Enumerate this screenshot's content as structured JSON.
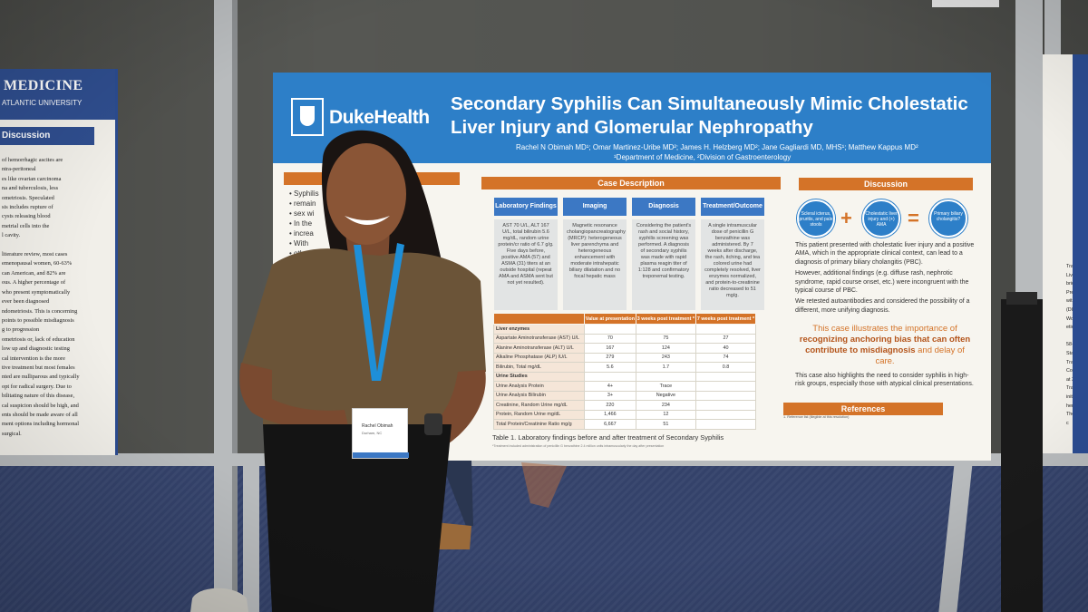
{
  "left_poster": {
    "header_word": "MEDICINE",
    "header_sub": "ATLANTIC UNIVERSITY",
    "section": "Discussion",
    "lines": [
      "of hemorrhagic ascites are",
      "ntra-peritoneal",
      "es like ovarian carcinoma",
      "na and tuberculosis, less",
      "ometriosis. Speculated",
      "sis includes rupture of",
      "cysts releasing blood",
      "metrial cells into the",
      "l cavity.",
      "",
      "literature review, most cases",
      "emenopausal women, 60-63%",
      "can American, and 82% are",
      "ous. A higher percentage of",
      "who present symptomatically",
      "ever been diagnosed",
      "ndometriosis. This is concerning",
      "points to possible misdiagnosis",
      "g to progression",
      "ometriosis or, lack of education",
      "low up and diagnostic testing",
      "cal intervention is the more",
      "tive treatment but most females",
      "nted are nulliparous and typically",
      "opt for radical surgery. Due to",
      "bilitating nature of this disease,",
      "cal suspicion should be high, and",
      "ents should be made aware of all",
      "ment options including hormonal",
      "surgical."
    ]
  },
  "right_poster": {
    "lines": [
      "Transamin",
      "Liver biops",
      "bridg",
      "Prese",
      "with zone 3",
      "(DILI)",
      "Workup",
      "etiolo",
      "",
      "58-y",
      "Statin was dis",
      "Transaminase",
      "Course notabl",
      "at 390,000 on",
      "Transaminase",
      "initiation of hemo",
      "The patient was c"
    ]
  },
  "poster": {
    "brand": "DukeHealth",
    "title": "Secondary Syphilis Can Simultaneously Mimic Cholestatic Liver Injury and Glomerular Nephropathy",
    "authors": "Rachel N Obimah MD¹; Omar Martinez-Uribe MD²; James H. Helzberg MD²; Jane Gagliardi MD, MHS¹; Matthew Kappus MD²",
    "department": "¹Department of Medicine, ²Division of Gastroenterology",
    "case_description": "Case Description",
    "discussion": "Discussion",
    "references": "References",
    "intro_lines": [
      "Syphilis",
      "remain",
      "sex wi",
      "In the",
      "increa",
      "With",
      "other"
    ],
    "columns": [
      {
        "head": "Laboratory Findings",
        "body": "AST 70 U/L, ALT 167 U/L, total bilirubin 5.6 mg/dL, random urine protein/cr ratio of 6.7 g/g. Five days before, positive AMA (57) and ASMA (31) titers at an outside hospital (repeat AMA and ASMA sent but not yet resulted)."
      },
      {
        "head": "Imaging",
        "body": "Magnetic resonance cholangiopancreatography (MRCP): heterogeneous liver parenchyma and heterogeneous enhancement with moderate intrahepatic biliary dilatation and no focal hepatic mass"
      },
      {
        "head": "Diagnosis",
        "body": "Considering the patient's rash and social history, syphilis screening was performed. A diagnosis of secondary syphilis was made with rapid plasma reagin titer of 1:128 and confirmatory treponemal testing."
      },
      {
        "head": "Treatment/Outcome",
        "body": "A single intramuscular dose of penicillin G benzathine was administered. By 7 weeks after discharge, the rash, itching, and tea colored urine had completely resolved, liver enzymes normalized, and protein-to-creatinine ratio decreased to 51 mg/g."
      }
    ],
    "table": {
      "headers": [
        "",
        "Value at presentation",
        "3 weeks post treatment *",
        "7 weeks post treatment *"
      ],
      "rows": [
        {
          "label": "Liver enzymes",
          "section": true,
          "values": [
            "",
            "",
            ""
          ]
        },
        {
          "label": "Aspartate Aminotransferase (AST) U/L",
          "values": [
            "70",
            "75",
            "27"
          ]
        },
        {
          "label": "Alanine Aminotransferase (ALT) U/L",
          "values": [
            "167",
            "124",
            "40"
          ]
        },
        {
          "label": "Alkaline Phosphatase (ALP) IU/L",
          "values": [
            "279",
            "243",
            "74"
          ]
        },
        {
          "label": "Bilirubin, Total mg/dL",
          "values": [
            "5.6",
            "1.7",
            "0.8"
          ]
        },
        {
          "label": "Urine Studies",
          "section": true,
          "values": [
            "",
            "",
            ""
          ]
        },
        {
          "label": "Urine Analysis Protein",
          "values": [
            "4+",
            "Trace",
            ""
          ]
        },
        {
          "label": "Urine Analysis Bilirubin",
          "values": [
            "3+",
            "Negative",
            ""
          ]
        },
        {
          "label": "Creatinine, Random Urine mg/dL",
          "values": [
            "220",
            "234",
            ""
          ]
        },
        {
          "label": "Protein, Random Urine mg/dL",
          "values": [
            "1,466",
            "12",
            ""
          ]
        },
        {
          "label": "Total Protein/Creatinine Ratio mg/g",
          "values": [
            "6,667",
            "51",
            ""
          ]
        }
      ],
      "caption": "Table 1. Laboratory findings before and after treatment of Secondary Syphilis",
      "footnote": "*Treatment included administration of penicillin G benzathine 2.4 million units intramuscularly the day after presentation"
    },
    "circles": [
      "Scleral icterus, pruritis, and pale stools",
      "Cholestatic liver injury and (+) AMA",
      "Primary biliary cholangitis?"
    ],
    "disc_points": [
      "This patient presented with cholestatic liver injury and a positive AMA, which in the appropriate clinical context, can lead to a diagnosis of primary biliary cholangitis (PBC).",
      "However, additional findings (e.g. diffuse rash, nephrotic syndrome, rapid course onset, etc.) were incongruent with the typical course of PBC.",
      "We retested autoantibodies and considered the possibility of a different, more unifying diagnosis."
    ],
    "highlight_pre": "This case illustrates the importance of",
    "highlight_bold": "recognizing anchoring bias that can often contribute to misdiagnosis",
    "highlight_post": "and delay of care.",
    "disc_point_last": "This case also highlights the need to consider syphilis in high-risk groups, especially those with atypical clinical presentations."
  },
  "badge": {
    "name": "Rachel Obimah",
    "location": "Durham, NC"
  },
  "colors": {
    "poster_blue": "#2d7fc8",
    "poster_orange": "#d47328",
    "lanyard": "#1e8fd8",
    "carpet": "#3b4970"
  }
}
